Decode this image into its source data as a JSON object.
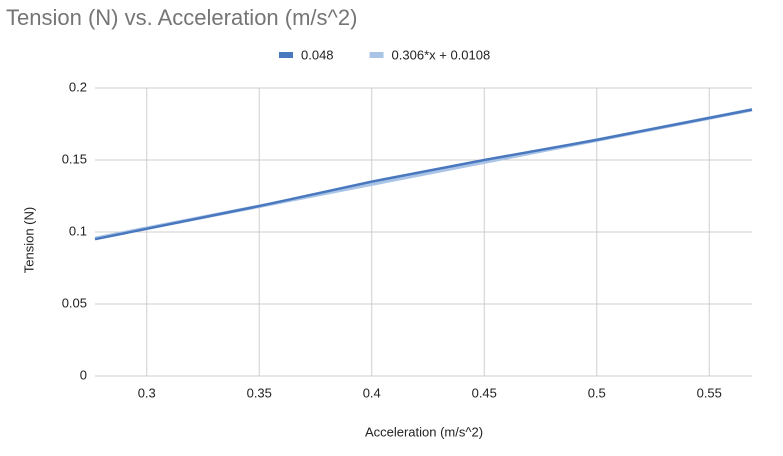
{
  "chart_data": {
    "type": "line",
    "title": "Tension (N) vs. Acceleration (m/s^2)",
    "x_label": "Acceleration (m/s^2)",
    "y_label": "Tension (N)",
    "x": [
      0.277,
      0.35,
      0.4,
      0.45,
      0.5,
      0.569
    ],
    "series": [
      {
        "name": "0.048",
        "color": "#4a78bf",
        "values": [
          0.095,
          0.118,
          0.135,
          0.15,
          0.164,
          0.185
        ]
      },
      {
        "name": "0.306*x + 0.0108",
        "color": "#a9c4e6",
        "values": [
          0.0956,
          0.1179,
          0.1332,
          0.1485,
          0.1638,
          0.1849
        ]
      }
    ],
    "xlim": [
      0.277,
      0.569
    ],
    "xticks": [
      0.3,
      0.35,
      0.4,
      0.45,
      0.5,
      0.55
    ],
    "ylim": [
      0,
      0.2
    ],
    "yticks": [
      0,
      0.05,
      0.1,
      0.15,
      0.2
    ],
    "grid": true,
    "legend": "top"
  }
}
